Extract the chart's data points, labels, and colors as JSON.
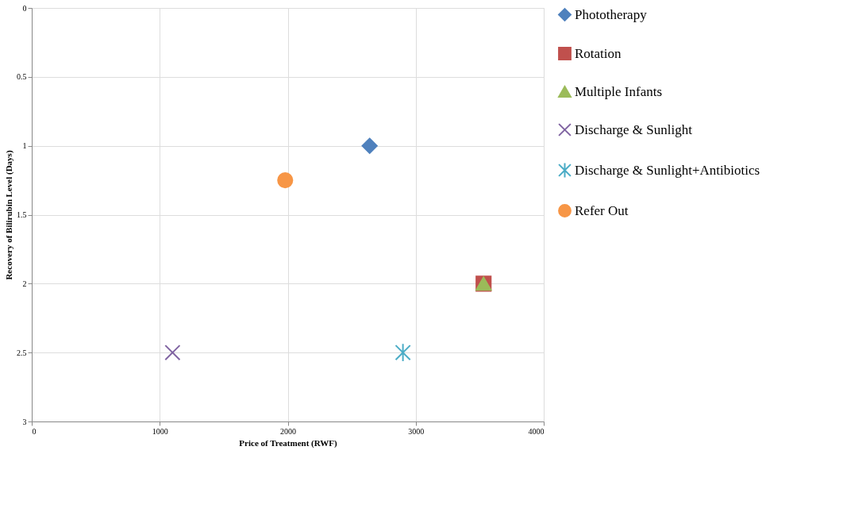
{
  "chart_data": {
    "type": "scatter",
    "xlabel": "Price of Treatment (RWF)",
    "ylabel": "Recovery of Bilirubin Level (Days)",
    "xlim": [
      0,
      4000
    ],
    "xticks": [
      0,
      1000,
      2000,
      3000,
      4000
    ],
    "ylim": [
      3,
      0
    ],
    "yticks": [
      0,
      0.5,
      1,
      1.5,
      2,
      2.5,
      3
    ],
    "grid": true,
    "legend": "right",
    "series": [
      {
        "name": "Phototherapy",
        "color": "#4f81bd",
        "marker": "diamond",
        "x": [
          2640
        ],
        "values": [
          1
        ]
      },
      {
        "name": "Rotation",
        "color": "#c0504d",
        "marker": "square",
        "x": [
          3530
        ],
        "values": [
          2
        ]
      },
      {
        "name": "Multiple Infants",
        "color": "#9bbb59",
        "marker": "triangle",
        "x": [
          3530
        ],
        "values": [
          2
        ]
      },
      {
        "name": "Discharge & Sunlight",
        "color": "#8064a2",
        "marker": "cross",
        "x": [
          1100
        ],
        "values": [
          2.5
        ]
      },
      {
        "name": "Discharge & Sunlight+Antibiotics",
        "color": "#4bacc6",
        "marker": "star",
        "x": [
          2900
        ],
        "values": [
          2.5
        ]
      },
      {
        "name": "Refer Out",
        "color": "#f79646",
        "marker": "circle",
        "x": [
          1980
        ],
        "values": [
          1.25
        ]
      }
    ]
  }
}
